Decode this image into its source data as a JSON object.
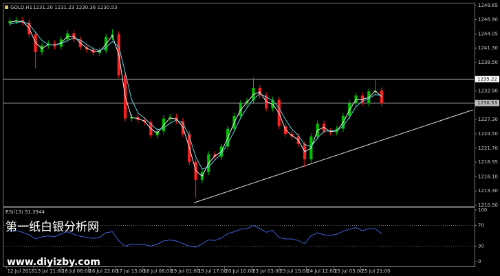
{
  "chart_data": {
    "type": "candlestick",
    "title": "GOLD,H1",
    "quote": "1231.20 1231.23 1230.36 1230.53",
    "up_color": "#00c000",
    "down_color": "#ff2020",
    "x": [
      2,
      6,
      10,
      14,
      18,
      22,
      26,
      30,
      34,
      38,
      42,
      46,
      50,
      54,
      58,
      62,
      66,
      70,
      74,
      78,
      82,
      86,
      90,
      94,
      98,
      102,
      106,
      110,
      114,
      118,
      122,
      126,
      130,
      134,
      138,
      142,
      146,
      150,
      154,
      158,
      162,
      166,
      170,
      174,
      178,
      182,
      186,
      190,
      194,
      198,
      202,
      206,
      210,
      214,
      218,
      222,
      226,
      230,
      234
    ],
    "open": [
      1246.2,
      1246.6,
      1246.8,
      1246.3,
      1244.0,
      1240.5,
      1241.8,
      1242.2,
      1241.6,
      1243.0,
      1244.2,
      1243.0,
      1241.5,
      1241.0,
      1240.4,
      1240.8,
      1243.5,
      1244.0,
      1236.0,
      1227.5,
      1227.8,
      1227.2,
      1226.8,
      1224.2,
      1225.0,
      1227.5,
      1227.8,
      1227.0,
      1224.5,
      1219.0,
      1215.5,
      1217.0,
      1220.5,
      1220.0,
      1222.0,
      1225.5,
      1228.0,
      1230.5,
      1231.0,
      1233.5,
      1232.0,
      1229.5,
      1231.2,
      1226.0,
      1224.5,
      1224.0,
      1222.5,
      1219.5,
      1224.0,
      1226.5,
      1225.0,
      1224.8,
      1225.5,
      1228.0,
      1230.5,
      1232.0,
      1230.5,
      1232.8,
      1233.0
    ],
    "high": [
      1247.2,
      1247.4,
      1247.4,
      1246.9,
      1244.6,
      1242.4,
      1242.8,
      1242.8,
      1243.6,
      1244.8,
      1244.8,
      1243.6,
      1242.1,
      1241.6,
      1241.4,
      1244.1,
      1245.0,
      1244.6,
      1236.6,
      1228.4,
      1228.4,
      1227.8,
      1227.4,
      1225.6,
      1228.1,
      1228.4,
      1228.4,
      1227.6,
      1225.1,
      1219.6,
      1217.6,
      1221.1,
      1221.1,
      1222.6,
      1226.1,
      1228.6,
      1231.1,
      1231.6,
      1235.5,
      1234.1,
      1232.6,
      1231.8,
      1231.8,
      1226.6,
      1225.1,
      1224.6,
      1223.1,
      1224.6,
      1227.1,
      1227.1,
      1225.6,
      1226.1,
      1228.6,
      1231.1,
      1232.6,
      1232.6,
      1233.4,
      1235.0,
      1233.6
    ],
    "low": [
      1245.6,
      1246.0,
      1245.7,
      1243.4,
      1237.3,
      1239.9,
      1241.2,
      1241.0,
      1241.0,
      1242.4,
      1242.4,
      1240.9,
      1240.4,
      1239.8,
      1239.8,
      1240.2,
      1242.9,
      1235.4,
      1226.9,
      1226.9,
      1226.6,
      1226.2,
      1223.6,
      1223.6,
      1224.4,
      1226.9,
      1226.4,
      1223.9,
      1218.4,
      1212.0,
      1214.9,
      1216.4,
      1219.4,
      1219.4,
      1221.4,
      1224.9,
      1227.4,
      1229.9,
      1230.4,
      1231.4,
      1228.9,
      1228.9,
      1225.4,
      1223.9,
      1223.4,
      1221.9,
      1218.0,
      1218.9,
      1223.4,
      1224.4,
      1224.2,
      1224.2,
      1224.9,
      1227.4,
      1229.9,
      1229.9,
      1229.9,
      1232.2,
      1229.9
    ],
    "close": [
      1246.6,
      1246.8,
      1246.3,
      1244.0,
      1240.5,
      1241.8,
      1242.2,
      1241.6,
      1243.0,
      1244.2,
      1243.0,
      1241.5,
      1241.0,
      1240.4,
      1240.8,
      1243.5,
      1244.0,
      1236.0,
      1227.5,
      1227.8,
      1227.2,
      1226.8,
      1224.2,
      1225.0,
      1227.5,
      1227.8,
      1227.0,
      1224.5,
      1219.0,
      1215.5,
      1217.0,
      1220.5,
      1220.0,
      1222.0,
      1225.5,
      1228.0,
      1230.5,
      1231.0,
      1233.5,
      1232.0,
      1229.5,
      1231.2,
      1226.0,
      1224.5,
      1224.0,
      1222.5,
      1219.5,
      1224.0,
      1226.5,
      1225.0,
      1224.8,
      1225.5,
      1228.0,
      1230.5,
      1232.0,
      1230.5,
      1232.8,
      1233.0,
      1230.5
    ],
    "moving_averages": [
      {
        "color": "#f0f0f0",
        "values": [
          1246.4,
          1246.6,
          1246.5,
          1245.2,
          1242.4,
          1241.2,
          1242.0,
          1241.9,
          1242.3,
          1243.6,
          1243.6,
          1242.3,
          1241.3,
          1240.7,
          1240.6,
          1242.1,
          1243.7,
          1240.0,
          1231.8,
          1227.7,
          1227.5,
          1227.0,
          1225.5,
          1224.6,
          1226.2,
          1227.6,
          1227.4,
          1225.8,
          1221.8,
          1217.3,
          1216.2,
          1218.7,
          1220.2,
          1221.0,
          1223.7,
          1226.7,
          1229.2,
          1230.7,
          1232.2,
          1232.7,
          1230.8,
          1230.3,
          1228.6,
          1225.3,
          1224.2,
          1223.3,
          1221.0,
          1221.7,
          1225.2,
          1225.8,
          1224.9,
          1225.1,
          1226.7,
          1229.2,
          1231.2,
          1231.3,
          1231.6,
          1232.9,
          1231.8
        ]
      },
      {
        "color": "#5fd3e0",
        "values": [
          1246.0,
          1246.3,
          1246.5,
          1246.0,
          1244.4,
          1242.8,
          1242.0,
          1241.9,
          1242.2,
          1242.8,
          1243.3,
          1242.9,
          1242.0,
          1241.2,
          1240.8,
          1241.4,
          1242.6,
          1241.6,
          1236.5,
          1231.2,
          1228.6,
          1227.6,
          1226.4,
          1225.3,
          1225.6,
          1226.6,
          1227.2,
          1226.6,
          1224.0,
          1220.0,
          1217.6,
          1218.0,
          1219.4,
          1220.6,
          1222.6,
          1225.0,
          1227.6,
          1229.6,
          1231.3,
          1232.4,
          1231.7,
          1231.0,
          1229.6,
          1227.3,
          1225.4,
          1224.2,
          1222.4,
          1222.0,
          1223.7,
          1225.0,
          1225.1,
          1225.1,
          1226.0,
          1227.8,
          1229.8,
          1230.9,
          1231.4,
          1232.2,
          1232.0
        ]
      }
    ],
    "xlim": [
      -2,
      292
    ],
    "xticks": [
      {
        "value": 0,
        "label": "12 Jul 2018"
      },
      {
        "value": 17,
        "label": "13 Jul 11:00"
      },
      {
        "value": 34,
        "label": "16 Jul 06:00"
      },
      {
        "value": 51,
        "label": "16 Jul 22:00"
      },
      {
        "value": 68,
        "label": "17 Jul 15:00"
      },
      {
        "value": 85,
        "label": "18 Jul 08:00"
      },
      {
        "value": 102,
        "label": "19 Jul 01:00"
      },
      {
        "value": 119,
        "label": "19 Jul 17:00"
      },
      {
        "value": 136,
        "label": "20 Jul 10:00"
      },
      {
        "value": 153,
        "label": "23 Jul 03:00"
      },
      {
        "value": 170,
        "label": "23 Jul 19:00"
      },
      {
        "value": 187,
        "label": "24 Jul 12:00"
      },
      {
        "value": 204,
        "label": "25 Jul 05:00"
      },
      {
        "value": 221,
        "label": "25 Jul 21:00"
      }
    ],
    "ylim": [
      1210.5,
      1249.65
    ],
    "yticks": [
      1249.65,
      {
        "value": 1246.9,
        "label": "1246.90"
      },
      1244.05,
      {
        "value": 1241.3,
        "label": "1241.30"
      },
      {
        "value": 1238.5,
        "label": "1238.50"
      },
      {
        "value": 1232.9,
        "label": "1232.90"
      },
      {
        "value": 1227.3,
        "label": "1227.30"
      },
      {
        "value": 1224.5,
        "label": "1224.50"
      },
      {
        "value": 1221.7,
        "label": "1221.70"
      },
      1218.95,
      {
        "value": 1216.1,
        "label": "1216.10"
      },
      {
        "value": 1213.3,
        "label": "1213.30"
      },
      {
        "value": 1210.5,
        "label": "1210.50"
      }
    ],
    "levels": [
      1235.22,
      1230.53
    ],
    "trendline": {
      "x": [
        117,
        291
      ],
      "y": [
        1211.0,
        1229.2
      ]
    },
    "indicator": {
      "title": "RSI(13) 51.3944",
      "color": "#3f63d8",
      "ylim": [
        0,
        100
      ],
      "yticks": [
        100,
        70,
        30,
        0
      ],
      "levels": [
        70,
        30
      ],
      "values": [
        58,
        60,
        57,
        52,
        44,
        48,
        50,
        48,
        54,
        58,
        53,
        49,
        47,
        45,
        47,
        56,
        58,
        40,
        30,
        34,
        33,
        33,
        30,
        34,
        40,
        42,
        40,
        35,
        30,
        28,
        34,
        42,
        41,
        46,
        54,
        58,
        63,
        64,
        70,
        64,
        57,
        61,
        47,
        44,
        44,
        41,
        35,
        50,
        56,
        52,
        51,
        53,
        59,
        63,
        66,
        60,
        64,
        64,
        54
      ]
    },
    "watermark": {
      "text": "第一纸白银分析网",
      "url": "www.diyizby.com"
    }
  }
}
